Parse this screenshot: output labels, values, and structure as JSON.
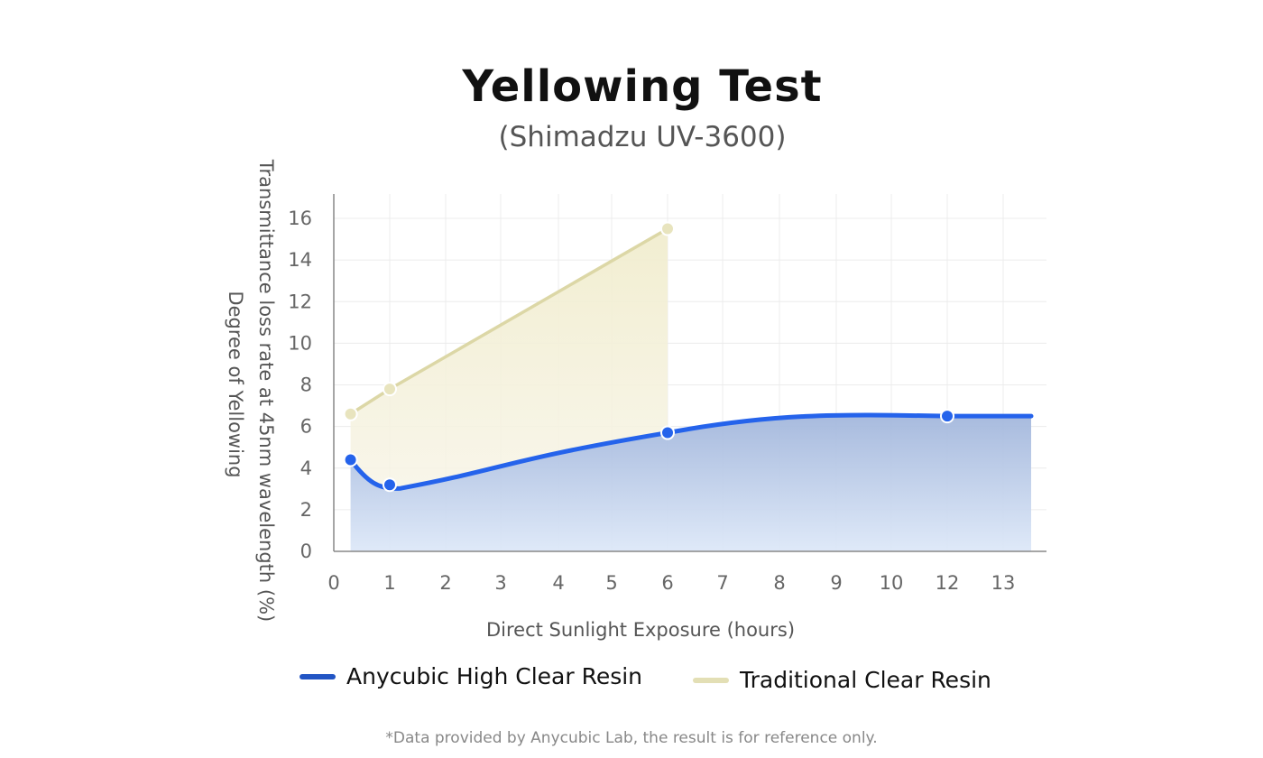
{
  "chart_data": {
    "type": "area",
    "title": "Yellowing Test",
    "subtitle": "(Shimadzu UV-3600)",
    "xlabel": "Direct Sunlight Exposure (hours)",
    "ylabel": "Transmittance loss rate at 45nm wavelength (%)",
    "ylabel2": "Degree of Yellowing",
    "xlim": [
      0,
      13.8
    ],
    "ylim": [
      0,
      17
    ],
    "x_ticks": [
      "0",
      "1",
      "2",
      "3",
      "4",
      "5",
      "6",
      "7",
      "8",
      "9",
      "10",
      "12",
      "13"
    ],
    "y_ticks": [
      "0",
      "2",
      "4",
      "6",
      "8",
      "10",
      "12",
      "14",
      "16"
    ],
    "grid": true,
    "legend_position": "bottom",
    "series": [
      {
        "name": "Anycubic High Clear Resin",
        "color": "#2563eb",
        "x": [
          0.3,
          1,
          6,
          12
        ],
        "y": [
          4.4,
          3.2,
          5.7,
          6.5
        ],
        "line_end": [
          13.5,
          6.5
        ]
      },
      {
        "name": "Traditional Clear Resin",
        "color": "#e3dfb5",
        "x": [
          0.3,
          1,
          6
        ],
        "y": [
          6.6,
          7.8,
          15.5
        ]
      }
    ],
    "footnote": "*Data provided by Anycubic Lab, the result is for reference only."
  }
}
